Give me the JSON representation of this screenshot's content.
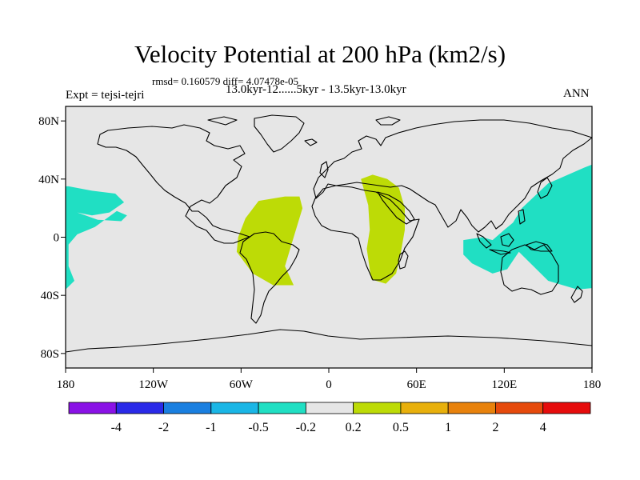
{
  "title": "Velocity Potential at 200 hPa (km2/s)",
  "stats_line": "rmsd= 0.160579 diff= 4.07478e-05",
  "left_label": "Expt = tejsi-tejri",
  "center_label": "13.0kyr-12......5kyr - 13.5kyr-13.0kyr",
  "right_label": "ANN",
  "axes": {
    "lon_range": [
      -180,
      180
    ],
    "lat_range": [
      -90,
      90
    ],
    "x_ticks": [
      {
        "lon": -180,
        "label": "180"
      },
      {
        "lon": -120,
        "label": "120W"
      },
      {
        "lon": -60,
        "label": "60W"
      },
      {
        "lon": 0,
        "label": "0"
      },
      {
        "lon": 60,
        "label": "60E"
      },
      {
        "lon": 120,
        "label": "120E"
      },
      {
        "lon": 180,
        "label": "180"
      }
    ],
    "y_ticks": [
      {
        "lat": 80,
        "label": "80N"
      },
      {
        "lat": 40,
        "label": "40N"
      },
      {
        "lat": 0,
        "label": "0"
      },
      {
        "lat": -40,
        "label": "40S"
      },
      {
        "lat": -80,
        "label": "80S"
      }
    ]
  },
  "colors": {
    "land_background": "#e6e6e6",
    "negative_small": "#20dfc3",
    "positive_small": "#bddb06",
    "coastline": "#000000"
  },
  "colorbar": {
    "colors": [
      "#8a12e6",
      "#2a2ae8",
      "#1a7fe0",
      "#1ab6e6",
      "#20dfc3",
      "#e6e6e6",
      "#bddb06",
      "#e8b00c",
      "#e8820c",
      "#e64a0c",
      "#e60c0c"
    ],
    "labels": [
      "-4",
      "-2",
      "-1",
      "-0.5",
      "-0.2",
      "0.2",
      "0.5",
      "1",
      "2",
      "4"
    ]
  },
  "anomaly_regions": [
    {
      "name": "north-pacific-negative",
      "sign": "negative",
      "color": "#20dfc3",
      "points": [
        [
          -178,
          35
        ],
        [
          -162,
          32
        ],
        [
          -146,
          30
        ],
        [
          -140,
          24
        ],
        [
          -150,
          17
        ],
        [
          -162,
          15
        ],
        [
          -172,
          17
        ],
        [
          -158,
          12
        ],
        [
          -142,
          11
        ],
        [
          -138,
          15
        ],
        [
          -145,
          18
        ],
        [
          -160,
          7
        ],
        [
          -172,
          2
        ],
        [
          -178,
          -5
        ],
        [
          -178,
          -20
        ],
        [
          -174,
          -30
        ],
        [
          -180,
          -36
        ],
        [
          -180,
          35
        ]
      ]
    },
    {
      "name": "atlantic-positive",
      "sign": "positive",
      "color": "#bddb06",
      "points": [
        [
          -48,
          25
        ],
        [
          -30,
          28
        ],
        [
          -20,
          28
        ],
        [
          -18,
          20
        ],
        [
          -24,
          0
        ],
        [
          -30,
          -20
        ],
        [
          -24,
          -33
        ],
        [
          -38,
          -33
        ],
        [
          -52,
          -25
        ],
        [
          -63,
          -10
        ],
        [
          -62,
          0
        ],
        [
          -57,
          13
        ]
      ]
    },
    {
      "name": "indian-ocean-positive",
      "sign": "positive",
      "color": "#bddb06",
      "points": [
        [
          22,
          40
        ],
        [
          30,
          43
        ],
        [
          40,
          40
        ],
        [
          48,
          34
        ],
        [
          52,
          20
        ],
        [
          52,
          5
        ],
        [
          49,
          -12
        ],
        [
          46,
          -25
        ],
        [
          39,
          -32
        ],
        [
          29,
          -29
        ],
        [
          26,
          -8
        ],
        [
          28,
          5
        ],
        [
          27,
          22
        ]
      ]
    },
    {
      "name": "west-pacific-negative",
      "sign": "negative",
      "color": "#20dfc3",
      "points": [
        [
          92,
          -2
        ],
        [
          105,
          0
        ],
        [
          112,
          -2
        ],
        [
          120,
          5
        ],
        [
          126,
          10
        ],
        [
          132,
          20
        ],
        [
          150,
          37
        ],
        [
          175,
          48
        ],
        [
          180,
          50
        ],
        [
          180,
          -35
        ],
        [
          170,
          -36
        ],
        [
          150,
          -30
        ],
        [
          130,
          -10
        ],
        [
          122,
          -22
        ],
        [
          112,
          -25
        ],
        [
          98,
          -18
        ],
        [
          92,
          -12
        ]
      ]
    }
  ]
}
